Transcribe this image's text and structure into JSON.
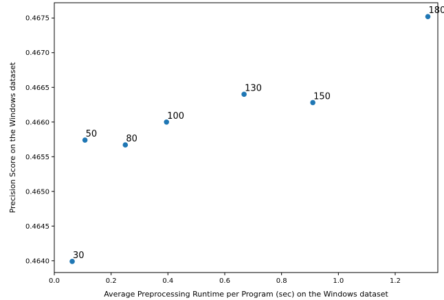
{
  "chart_data": {
    "type": "scatter",
    "xlabel": "Average Preprocessing Runtime per Program (sec) on the Windows dataset",
    "ylabel": "Precision Score on the Windows dataset",
    "xlim": [
      0.0,
      1.35
    ],
    "ylim": [
      0.46383,
      0.46772
    ],
    "x_ticks": [
      0.0,
      0.2,
      0.4,
      0.6,
      0.8,
      1.0,
      1.2
    ],
    "x_tick_labels": [
      "0.0",
      "0.2",
      "0.4",
      "0.6",
      "0.8",
      "1.0",
      "1.2"
    ],
    "y_ticks": [
      0.464,
      0.4645,
      0.465,
      0.4655,
      0.466,
      0.4665,
      0.467,
      0.4675
    ],
    "y_tick_labels": [
      "0.4640",
      "0.4645",
      "0.4650",
      "0.4655",
      "0.4660",
      "0.4665",
      "0.4670",
      "0.4675"
    ],
    "grid": false,
    "color": "#1f77b4",
    "points": [
      {
        "x": 0.063,
        "y": 0.46399,
        "label": "30"
      },
      {
        "x": 0.108,
        "y": 0.46574,
        "label": "50"
      },
      {
        "x": 0.25,
        "y": 0.46567,
        "label": "80"
      },
      {
        "x": 0.395,
        "y": 0.466,
        "label": "100"
      },
      {
        "x": 0.668,
        "y": 0.4664,
        "label": "130"
      },
      {
        "x": 0.91,
        "y": 0.46628,
        "label": "150"
      },
      {
        "x": 1.315,
        "y": 0.46752,
        "label": "180"
      }
    ]
  }
}
